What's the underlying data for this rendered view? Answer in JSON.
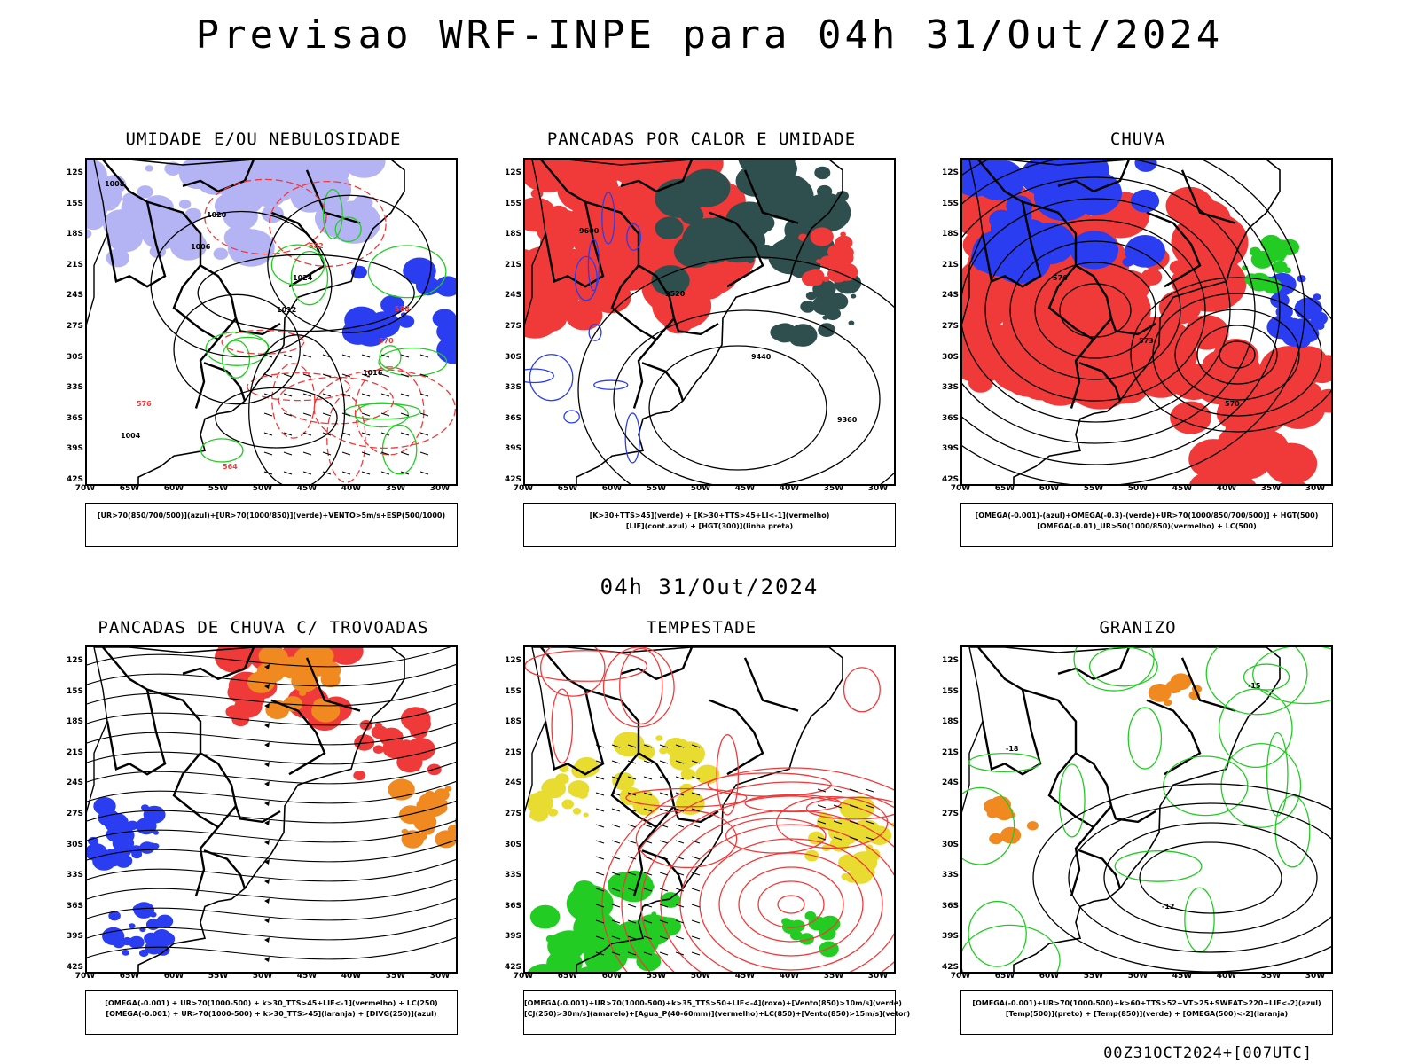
{
  "page": {
    "title": "Previsao WRF-INPE  para 04h 31/Out/2024",
    "subtitle": "04h 31/Out/2024",
    "stamp": "00Z31OCT2024+[007UTC]"
  },
  "axes": {
    "lat_labels": [
      "12S",
      "15S",
      "18S",
      "21S",
      "24S",
      "27S",
      "30S",
      "33S",
      "36S",
      "39S",
      "42S"
    ],
    "lon_labels": [
      "70W",
      "65W",
      "60W",
      "55W",
      "50W",
      "45W",
      "40W",
      "35W",
      "30W"
    ]
  },
  "colors": {
    "red": "#f03a3a",
    "green": "#22cc22",
    "blue": "#2a3df0",
    "lavender": "#b4b4f4",
    "darkteal": "#2f4f4f",
    "orange": "#f08a20",
    "yellow": "#e8dc30"
  },
  "panels": [
    {
      "id": "umidade",
      "title": "UMIDADE E/OU NEBULOSIDADE",
      "legend": [
        "[UR>70(850/700/500)](azul)+[UR>70(1000/850)](verde)+VENTO>5m/s+ESP(500/1000)"
      ],
      "contour_labels": [
        "1008",
        "1006",
        "1012",
        "1016",
        "1004",
        "1020",
        "1024",
        "570",
        "576",
        "564",
        "582",
        "588"
      ]
    },
    {
      "id": "pancadas-calor",
      "title": "PANCADAS POR CALOR E UMIDADE",
      "legend": [
        "[K>30+TTS>45](verde) + [K>30+TTS>45+LI<-1](vermelho)",
        "[LIF](cont.azul) + [HGT(300)](linha preta)"
      ],
      "contour_labels": [
        "9600",
        "9520",
        "9440",
        "9360"
      ]
    },
    {
      "id": "chuva",
      "title": "CHUVA",
      "legend": [
        "[OMEGA(-0.001)-(azul)+OMEGA(-0.3)-(verde)+UR>70(1000/850/700/500)] + HGT(500)",
        "[OMEGA(-0.01)_UR>50(1000/850)(vermelho) + LC(500)"
      ],
      "contour_labels": [
        "576",
        "573",
        "570"
      ]
    },
    {
      "id": "trovoadas",
      "title": "PANCADAS DE CHUVA C/ TROVOADAS",
      "legend": [
        "[OMEGA(-0.001) + UR>70(1000-500) + k>30_TTS>45+LIF<-1](vermelho) + LC(250)",
        "[OMEGA(-0.001) + UR>70(1000-500) + k>30_TTS>45](laranja) + [DIVG(250)](azul)"
      ],
      "contour_labels": []
    },
    {
      "id": "tempestade",
      "title": "TEMPESTADE",
      "legend": [
        "[OMEGA(-0.001)+UR>70(1000-500)+k>35_TTS>50+LIF<-4](roxo)+[Vento(850)>10m/s](verde)",
        "[CJ(250)>30m/s](amarelo)+[Agua_P(40-60mm)](vermelho)+LC(850)+[Vento(850)>15m/s](vetor)"
      ],
      "contour_labels": []
    },
    {
      "id": "granizo",
      "title": "GRANIZO",
      "legend": [
        "[OMEGA(-0.001)+UR>70(1000-500)+k>60+TTS>52+VT>25+SWEAT>220+LIF<-2](azul)",
        "[Temp(500)](preto) + [Temp(850)](verde) + [OMEGA(500)<-2](laranja)"
      ],
      "contour_labels": [
        "-12",
        "-15",
        "-18"
      ]
    }
  ]
}
